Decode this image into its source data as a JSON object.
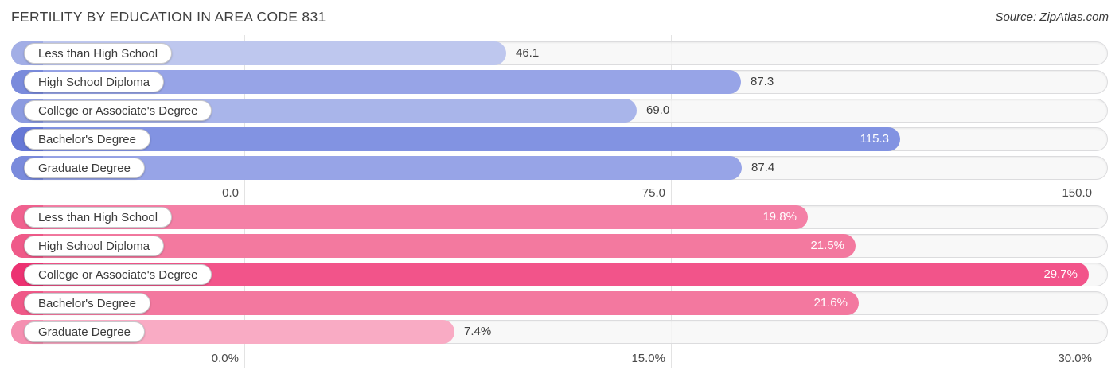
{
  "header": {
    "title": "FERTILITY BY EDUCATION IN AREA CODE 831",
    "source": "Source: ZipAtlas.com"
  },
  "chart_data": [
    {
      "type": "bar",
      "orientation": "horizontal",
      "title": "Fertility rate by education level",
      "categories": [
        "Less than High School",
        "High School Diploma",
        "College or Associate's Degree",
        "Bachelor's Degree",
        "Graduate Degree"
      ],
      "values": [
        46.1,
        87.3,
        69.0,
        115.3,
        87.4
      ],
      "value_labels": [
        "46.1",
        "87.3",
        "69.0",
        "115.3",
        "87.4"
      ],
      "xlim": [
        0,
        150
      ],
      "tick_values": [
        0,
        75,
        150
      ],
      "tick_labels": [
        "0.0",
        "75.0",
        "150.0"
      ],
      "legend": "none",
      "grid": "vertical",
      "bar_colors": [
        "#bec7ee",
        "#97a4e7",
        "#a9b5ea",
        "#8293e2",
        "#97a4e7"
      ],
      "bar_cap_colors": [
        "#a2aee6",
        "#7a8bdc",
        "#8c9be0",
        "#6678d6",
        "#7a8bdc"
      ],
      "value_label_placement": [
        "outside",
        "outside",
        "outside",
        "inside",
        "outside"
      ],
      "value_label_colors": {
        "inside": "#ffffff",
        "outside": "#3f3f3f"
      }
    },
    {
      "type": "bar",
      "orientation": "horizontal",
      "title": "Fertility percentage by education level",
      "categories": [
        "Less than High School",
        "High School Diploma",
        "College or Associate's Degree",
        "Bachelor's Degree",
        "Graduate Degree"
      ],
      "values": [
        19.8,
        21.5,
        29.7,
        21.6,
        7.4
      ],
      "value_labels": [
        "19.8%",
        "21.5%",
        "29.7%",
        "21.6%",
        "7.4%"
      ],
      "xlim": [
        0,
        30
      ],
      "tick_values": [
        0,
        15,
        30
      ],
      "tick_labels": [
        "0.0%",
        "15.0%",
        "30.0%"
      ],
      "legend": "none",
      "grid": "vertical",
      "bar_colors": [
        "#f480a6",
        "#f3799f",
        "#f2548a",
        "#f3789f",
        "#f9abc4"
      ],
      "bar_cap_colors": [
        "#f0618f",
        "#ef5a89",
        "#ec3272",
        "#ef5988",
        "#f590b1"
      ],
      "value_label_placement": [
        "inside",
        "inside",
        "inside",
        "inside",
        "outside"
      ],
      "value_label_colors": {
        "inside": "#ffffff",
        "outside": "#3f3f3f"
      }
    }
  ],
  "style": {
    "grid_color": "#e3e3e3",
    "track_color": "#f6f6f7",
    "track_border": "#dcdcde",
    "pill_background": "#ffffff",
    "pill_border": "#c8c8cb",
    "text_color": "#3a3a3a"
  }
}
